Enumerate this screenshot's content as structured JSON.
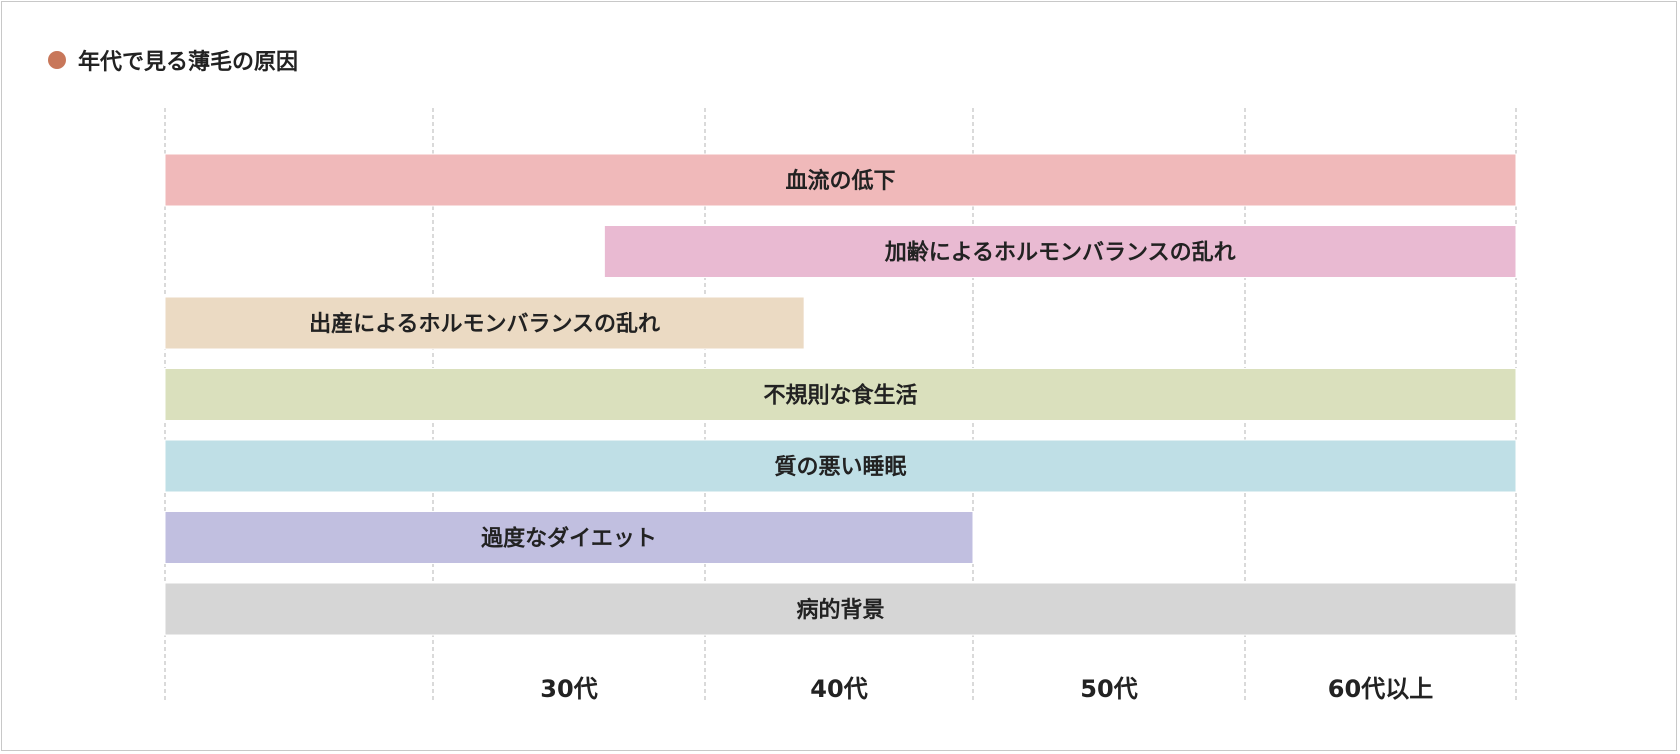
{
  "chart_data": {
    "type": "bar",
    "title": "年代で見る薄毛の原因",
    "title_dot_color": "#c8775a",
    "x_tick_labels": [
      "30代",
      "40代",
      "50代",
      "60代以上"
    ],
    "grid": "dashed vertical",
    "bars": [
      {
        "label": "血流の低下",
        "start": 0,
        "end": 5,
        "color": "#f0b9ba"
      },
      {
        "label": "加齢によるホルモンバランスの乱れ",
        "start": 1.63,
        "end": 5,
        "color": "#e9bad2"
      },
      {
        "label": "出産によるホルモンバランスの乱れ",
        "start": 0,
        "end": 2.37,
        "color": "#ebdac3"
      },
      {
        "label": "不規則な食生活",
        "start": 0,
        "end": 5,
        "color": "#dae0bd"
      },
      {
        "label": "質の悪い睡眠",
        "start": 0,
        "end": 5,
        "color": "#bfdfe6"
      },
      {
        "label": "過度なダイエット",
        "start": 0,
        "end": 3,
        "color": "#c1bfe0"
      },
      {
        "label": "病的背景",
        "start": 0,
        "end": 5,
        "color": "#d6d6d6"
      }
    ]
  }
}
